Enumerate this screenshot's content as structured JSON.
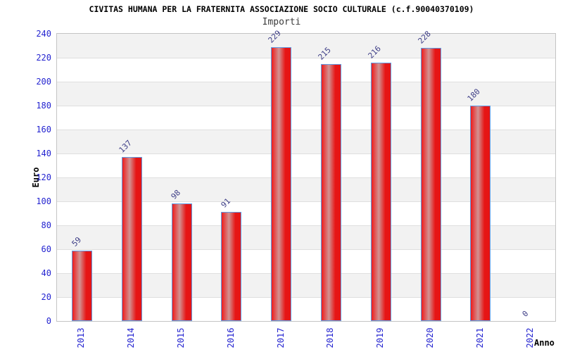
{
  "header": {
    "title": "CIVITAS HUMANA PER LA FRATERNITA ASSOCIAZIONE SOCIO CULTURALE (c.f.90040370109)",
    "subtitle": "Importi"
  },
  "axes": {
    "x_label": "Anno",
    "y_label": "Euro"
  },
  "chart_data": {
    "type": "bar",
    "title": "CIVITAS HUMANA PER LA FRATERNITA ASSOCIAZIONE SOCIO CULTURALE (c.f.90040370109)",
    "subtitle": "Importi",
    "xlabel": "Anno",
    "ylabel": "Euro",
    "categories": [
      "2013",
      "2014",
      "2015",
      "2016",
      "2017",
      "2018",
      "2019",
      "2020",
      "2021",
      "2022"
    ],
    "values": [
      59,
      137,
      98,
      91,
      229,
      215,
      216,
      228,
      180,
      0
    ],
    "ylim": [
      0,
      240
    ],
    "ytick_step": 20,
    "ytick_labels": [
      "0",
      "20",
      "40",
      "60",
      "80",
      "100",
      "120",
      "140",
      "160",
      "180",
      "200",
      "220",
      "240"
    ],
    "grid": "alternating-horizontal-bands",
    "legend_position": "none",
    "bar_value_labels_shown": true,
    "value_label_rotation_deg": -45,
    "xtick_rotation_deg": -90
  },
  "colors": {
    "title_text": "#000000",
    "subtitle_text": "#3c3c3c",
    "axis_title_text": "#000000",
    "tick_label": "#2424d0",
    "value_label": "#3d3d86",
    "bar_fill_left": "#ee1c1c",
    "bar_fill_mid_light": "#d29292",
    "bar_fill_right": "#e61515",
    "bar_border": "#5e9ce6",
    "band_gray": "#f2f2f2",
    "band_white": "#ffffff",
    "band_line": "#dfdfdf",
    "plot_border": "#c4c4c4",
    "page_background": "#ffffff"
  }
}
